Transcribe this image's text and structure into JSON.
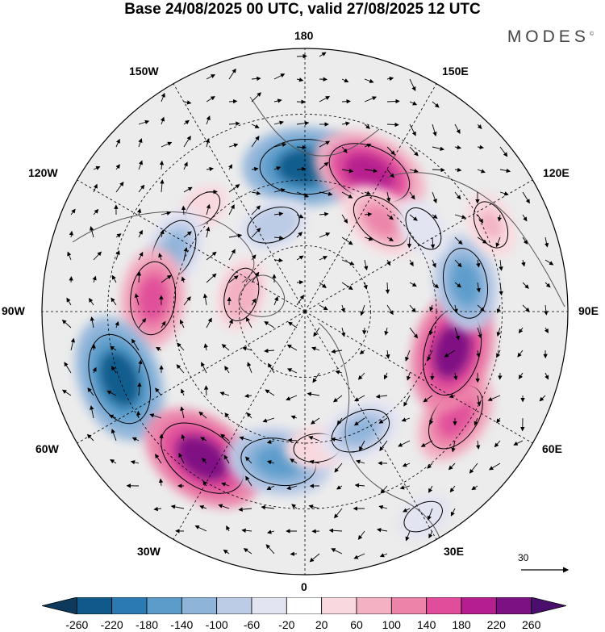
{
  "title": "Base 24/08/2025 00 UTC, valid 27/08/2025 12 UTC",
  "brand": "MODES",
  "brand_mark": "©",
  "longitude_labels": {
    "top": "180",
    "upper_left": "150W",
    "upper_right": "150E",
    "mid_upper_left": "120W",
    "mid_upper_right": "120E",
    "left": "90W",
    "right": "90E",
    "mid_lower_left": "60W",
    "mid_lower_right": "60E",
    "lower_left": "30W",
    "lower_right": "30E",
    "bottom": "0"
  },
  "vector_reference": {
    "label": "30",
    "icon": "arrow-right-icon"
  },
  "colorbar": {
    "tick_labels": [
      "-260",
      "-220",
      "-180",
      "-140",
      "-100",
      "-60",
      "-20",
      "20",
      "60",
      "100",
      "140",
      "180",
      "220",
      "260"
    ],
    "colors": [
      "#0d3a5c",
      "#0f5a8a",
      "#2b7ab4",
      "#5b9ccb",
      "#8fb4da",
      "#bccbe6",
      "#e3e4f2",
      "#ffffff",
      "#f9d9df",
      "#f3b1c3",
      "#ec83a9",
      "#e04d9a",
      "#b51e8e",
      "#7b1183",
      "#4a0f6d"
    ]
  },
  "anomalies": [
    {
      "lon": 180,
      "r": 0.55,
      "value": -240
    },
    {
      "lon": 155,
      "r": 0.58,
      "value": 220
    },
    {
      "lon": 140,
      "r": 0.45,
      "value": 130
    },
    {
      "lon": 200,
      "r": 0.35,
      "value": -90
    },
    {
      "lon": 225,
      "r": 0.55,
      "value": 40
    },
    {
      "lon": 245,
      "r": 0.55,
      "value": -130
    },
    {
      "lon": 265,
      "r": 0.58,
      "value": 170
    },
    {
      "lon": 255,
      "r": 0.25,
      "value": 90
    },
    {
      "lon": 290,
      "r": 0.75,
      "value": -250
    },
    {
      "lon": 325,
      "r": 0.68,
      "value": 250
    },
    {
      "lon": 350,
      "r": 0.58,
      "value": -180
    },
    {
      "lon": 5,
      "r": 0.52,
      "value": 60
    },
    {
      "lon": 25,
      "r": 0.5,
      "value": -120
    },
    {
      "lon": 30,
      "r": 0.9,
      "value": -40
    },
    {
      "lon": 55,
      "r": 0.7,
      "value": 160
    },
    {
      "lon": 75,
      "r": 0.58,
      "value": 240
    },
    {
      "lon": 100,
      "r": 0.62,
      "value": -160
    },
    {
      "lon": 115,
      "r": 0.78,
      "value": 70
    },
    {
      "lon": 125,
      "r": 0.55,
      "value": -60
    }
  ]
}
